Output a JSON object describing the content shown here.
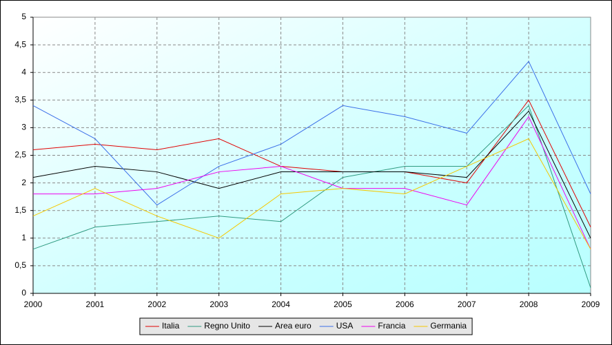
{
  "chart_data": {
    "type": "line",
    "x": [
      2000,
      2001,
      2002,
      2003,
      2004,
      2005,
      2006,
      2007,
      2008,
      2009
    ],
    "xlim": [
      2000,
      2009
    ],
    "xticks": [
      2000,
      2001,
      2002,
      2003,
      2004,
      2005,
      2006,
      2007,
      2008,
      2009
    ],
    "ylim": [
      0,
      5
    ],
    "yticks": [
      0,
      {
        "value": 0.5,
        "label": "0,5"
      },
      1,
      {
        "value": 1.5,
        "label": "1,5"
      },
      2,
      {
        "value": 2.5,
        "label": "2,5"
      },
      3,
      {
        "value": 3.5,
        "label": "3,5"
      },
      4,
      {
        "value": 4.5,
        "label": "4,5"
      },
      5
    ],
    "grid": true,
    "legend": "bottom",
    "series": [
      {
        "name": "Italia",
        "color": "#e00000",
        "values": [
          2.6,
          2.7,
          2.6,
          2.8,
          2.3,
          2.2,
          2.2,
          2.0,
          3.5,
          1.2
        ]
      },
      {
        "name": "Regno Unito",
        "color": "#2e9a80",
        "values": [
          0.8,
          1.2,
          1.3,
          1.4,
          1.3,
          2.1,
          2.3,
          2.3,
          3.4,
          0.1
        ]
      },
      {
        "name": "Area euro",
        "color": "#000000",
        "values": [
          2.1,
          2.3,
          2.2,
          1.9,
          2.2,
          2.2,
          2.2,
          2.1,
          3.3,
          1.0
        ]
      },
      {
        "name": "USA",
        "color": "#3a6ee8",
        "values": [
          3.4,
          2.8,
          1.6,
          2.3,
          2.7,
          3.4,
          3.2,
          2.9,
          4.2,
          1.8
        ]
      },
      {
        "name": "Francia",
        "color": "#ee00ee",
        "values": [
          1.8,
          1.8,
          1.9,
          2.2,
          2.3,
          1.9,
          1.9,
          1.6,
          3.2,
          0.8
        ]
      },
      {
        "name": "Germania",
        "color": "#f5c800",
        "values": [
          1.4,
          1.9,
          1.4,
          1.0,
          1.8,
          1.9,
          1.8,
          2.3,
          2.8,
          0.8
        ]
      }
    ]
  }
}
